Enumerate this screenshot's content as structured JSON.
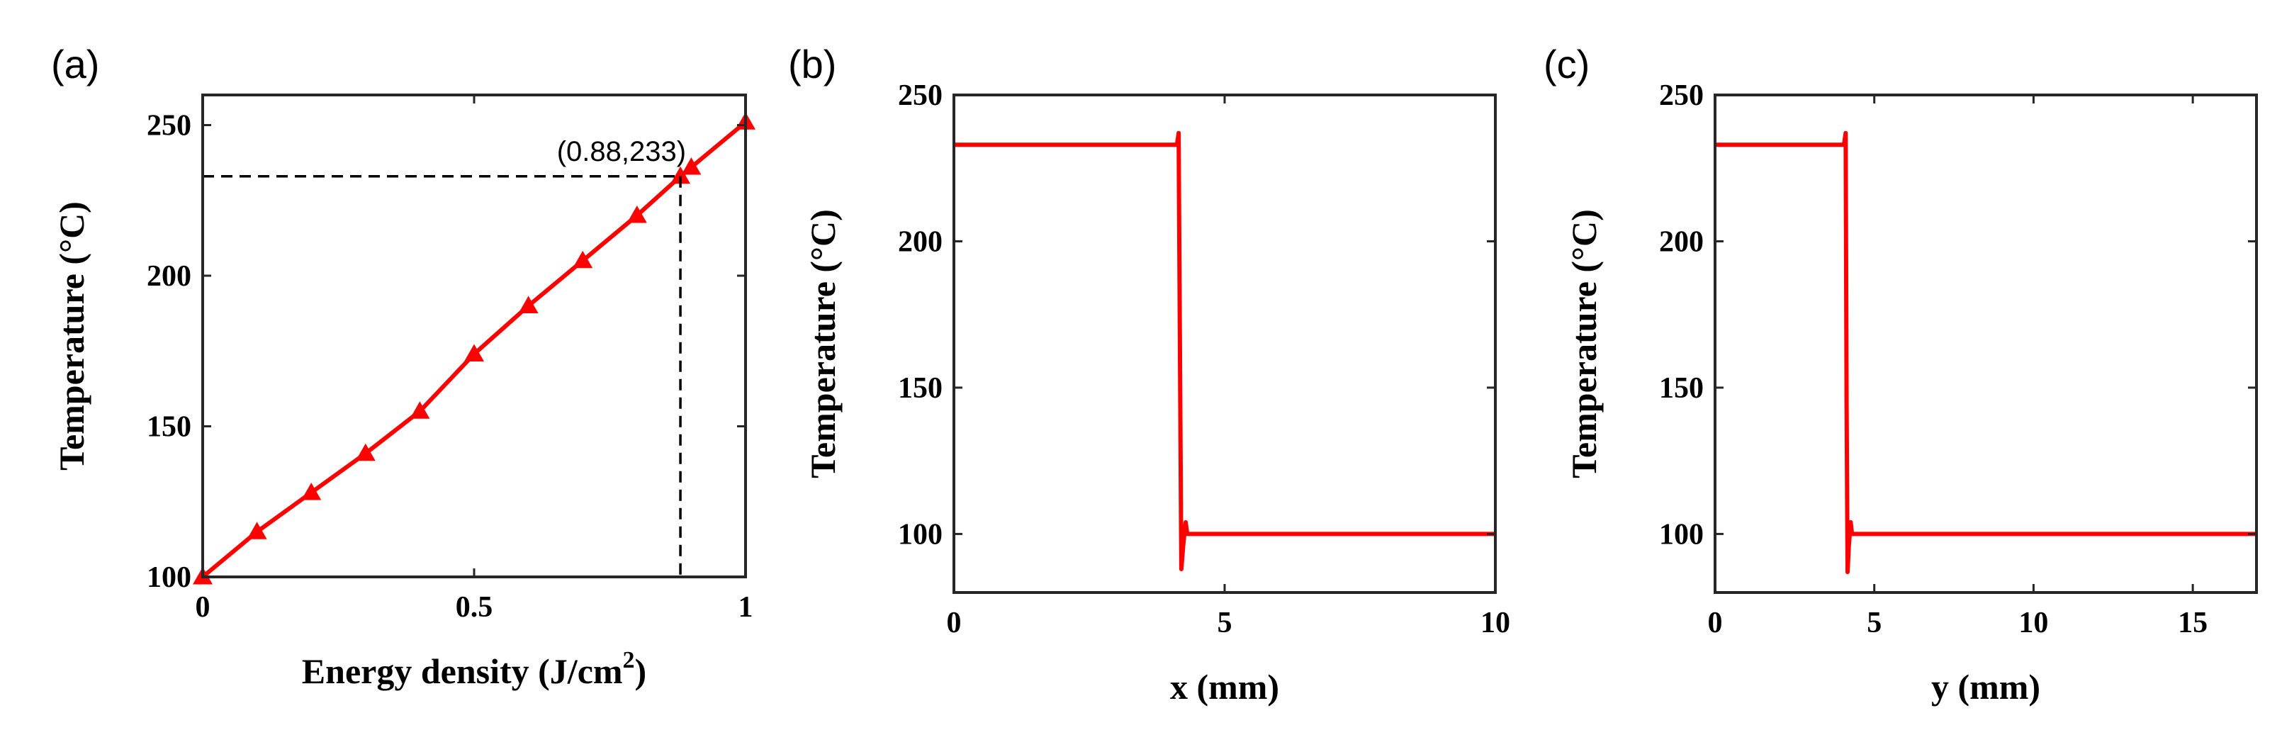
{
  "chart_data": [
    {
      "panel": "(a)",
      "type": "line",
      "xlabel": "Energy density (J/cm",
      "xlabel_sup": "2",
      "xlabel_end": ")",
      "ylabel": "Temperature (°C)",
      "xlim": [
        0,
        1
      ],
      "ylim": [
        100,
        260
      ],
      "xticks": [
        0,
        0.5,
        1
      ],
      "xtick_labels": [
        "0",
        "0.5",
        "1"
      ],
      "yticks": [
        100,
        150,
        200,
        250
      ],
      "ytick_labels": [
        "100",
        "150",
        "200",
        "250"
      ],
      "series": [
        {
          "color": "#ff0000",
          "marker": "triangle",
          "x": [
            0,
            0.1,
            0.2,
            0.3,
            0.4,
            0.5,
            0.6,
            0.7,
            0.8,
            0.88,
            0.9,
            1.0
          ],
          "y": [
            100,
            115,
            128,
            141,
            155,
            174,
            190,
            205,
            220,
            233,
            236,
            251
          ]
        }
      ],
      "annotation": {
        "text": "(0.88,233)",
        "x": 0.88,
        "y": 233,
        "dashed_guides": true
      },
      "grid": false
    },
    {
      "panel": "(b)",
      "type": "line",
      "xlabel": "x (mm)",
      "ylabel": "Temperature (°C)",
      "xlim": [
        0,
        10
      ],
      "ylim": [
        80,
        250
      ],
      "xticks": [
        0,
        5,
        10
      ],
      "xtick_labels": [
        "0",
        "5",
        "10"
      ],
      "yticks": [
        100,
        150,
        200,
        250
      ],
      "ytick_labels": [
        "100",
        "150",
        "200",
        "250"
      ],
      "series": [
        {
          "color": "#ff0000",
          "x": [
            0,
            4.12,
            4.15,
            4.18,
            4.2,
            4.24,
            4.28,
            4.31,
            10
          ],
          "y": [
            233,
            233,
            237,
            145,
            88,
            97,
            104,
            100,
            100
          ]
        }
      ],
      "grid": false
    },
    {
      "panel": "(c)",
      "type": "line",
      "xlabel": "y (mm)",
      "ylabel": "Temperature (°C)",
      "xlim": [
        0,
        17
      ],
      "ylim": [
        80,
        250
      ],
      "xticks": [
        0,
        5,
        10,
        15
      ],
      "xtick_labels": [
        "0",
        "5",
        "10",
        "15"
      ],
      "yticks": [
        100,
        150,
        200,
        250
      ],
      "ytick_labels": [
        "100",
        "150",
        "200",
        "250"
      ],
      "series": [
        {
          "color": "#ff0000",
          "x": [
            0,
            4.05,
            4.1,
            4.13,
            4.16,
            4.2,
            4.26,
            4.3,
            17
          ],
          "y": [
            233,
            233,
            237,
            145,
            87,
            96,
            104,
            100,
            100
          ]
        }
      ],
      "grid": false
    }
  ]
}
